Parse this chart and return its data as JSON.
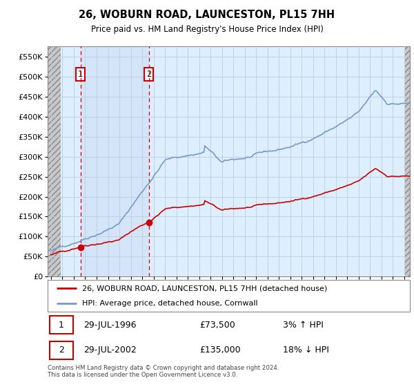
{
  "title": "26, WOBURN ROAD, LAUNCESTON, PL15 7HH",
  "subtitle": "Price paid vs. HM Land Registry's House Price Index (HPI)",
  "legend_line1": "26, WOBURN ROAD, LAUNCESTON, PL15 7HH (detached house)",
  "legend_line2": "HPI: Average price, detached house, Cornwall",
  "transaction1_date": "29-JUL-1996",
  "transaction1_price": "£73,500",
  "transaction1_hpi": "3% ↑ HPI",
  "transaction2_date": "29-JUL-2002",
  "transaction2_price": "£135,000",
  "transaction2_hpi": "18% ↓ HPI",
  "footer": "Contains HM Land Registry data © Crown copyright and database right 2024.\nThis data is licensed under the Open Government Licence v3.0.",
  "property_color": "#cc0000",
  "hpi_color": "#7799cc",
  "hpi_fill_color": "#ccddf5",
  "grid_color": "#bbccdd",
  "background_plot": "#ddeeff",
  "hatch_bg": "#d0d0d0",
  "ylim": [
    0,
    575000
  ],
  "yticks": [
    0,
    50000,
    100000,
    150000,
    200000,
    250000,
    300000,
    350000,
    400000,
    450000,
    500000,
    550000
  ],
  "xlim_start": 1993.7,
  "xlim_end": 2025.5,
  "transaction1_year": 1996.58,
  "transaction1_value": 73500,
  "transaction2_year": 2002.58,
  "transaction2_value": 135000,
  "hatch_end_year": 1994.85,
  "hatch_start_right": 2025.08
}
